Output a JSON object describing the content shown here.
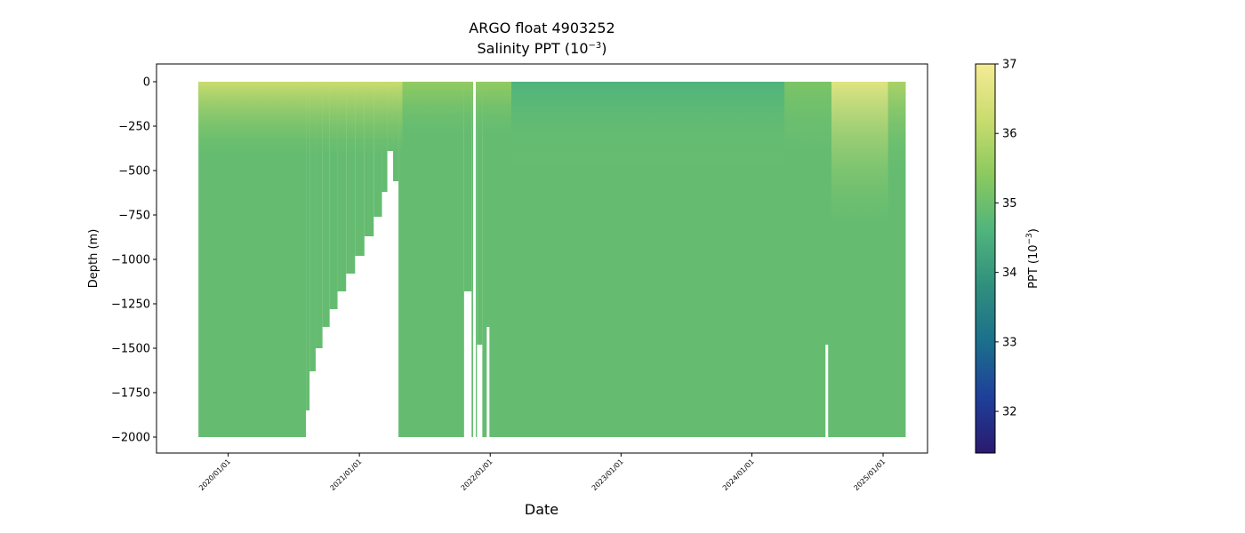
{
  "chart_data": {
    "type": "heatmap",
    "title": "ARGO float 4903252",
    "subtitle_prefix": "Salinity PPT (10",
    "subtitle_sup": "−3",
    "subtitle_suffix": ")",
    "xlabel": "Date",
    "ylabel": "Depth (m)",
    "xlim": [
      "2019-06-15",
      "2025-05-05"
    ],
    "ylim": [
      -2090,
      100
    ],
    "x_ticks": [
      "2020/01/01",
      "2021/01/01",
      "2022/01/01",
      "2023/01/01",
      "2024/01/01",
      "2025/01/01"
    ],
    "y_ticks": [
      0,
      -250,
      -500,
      -750,
      -1000,
      -1250,
      -1500,
      -1750,
      -2000
    ],
    "colorbar": {
      "label_prefix": "PPT (10",
      "label_sup": "−3",
      "label_suffix": ")",
      "range": [
        31.4,
        37
      ],
      "ticks": [
        32,
        33,
        34,
        35,
        36,
        37
      ],
      "colormap": "haline",
      "stops": [
        "#2a1a6e",
        "#1f3f9a",
        "#1b6f8c",
        "#2f8f7d",
        "#4fb47c",
        "#8bc95f",
        "#c9dc6e",
        "#f5eb95"
      ]
    },
    "profile_range": {
      "start": "2019-10-10",
      "end": "2025-03-05",
      "surface": 0
    },
    "bottom_depth_segments": [
      {
        "start": "2019-10-10",
        "end": "2020-08-05",
        "depth": -2000
      },
      {
        "start": "2020-08-05",
        "end": "2020-08-15",
        "depth": -1850
      },
      {
        "start": "2020-08-15",
        "end": "2020-09-01",
        "depth": -1630
      },
      {
        "start": "2020-09-01",
        "end": "2020-09-20",
        "depth": -1500
      },
      {
        "start": "2020-09-20",
        "end": "2020-10-10",
        "depth": -1380
      },
      {
        "start": "2020-10-10",
        "end": "2020-11-01",
        "depth": -1280
      },
      {
        "start": "2020-11-01",
        "end": "2020-11-25",
        "depth": -1180
      },
      {
        "start": "2020-11-25",
        "end": "2020-12-20",
        "depth": -1080
      },
      {
        "start": "2020-12-20",
        "end": "2021-01-15",
        "depth": -980
      },
      {
        "start": "2021-01-15",
        "end": "2021-02-10",
        "depth": -870
      },
      {
        "start": "2021-02-10",
        "end": "2021-03-05",
        "depth": -760
      },
      {
        "start": "2021-03-05",
        "end": "2021-03-20",
        "depth": -620
      },
      {
        "start": "2021-03-20",
        "end": "2021-04-05",
        "depth": -390
      },
      {
        "start": "2021-04-05",
        "end": "2021-04-20",
        "depth": -560
      },
      {
        "start": "2021-04-20",
        "end": "2021-10-20",
        "depth": -2000
      },
      {
        "start": "2021-10-20",
        "end": "2021-11-10",
        "depth": -1180
      },
      {
        "start": "2021-11-10",
        "end": "2021-11-25",
        "depth": -2000
      },
      {
        "start": "2021-11-25",
        "end": "2021-12-10",
        "depth": -1480
      },
      {
        "start": "2021-12-10",
        "end": "2025-03-05",
        "depth": -2000
      }
    ],
    "vertical_gaps": [
      {
        "date": "2021-11-18",
        "top": 0,
        "bottom": -2000
      },
      {
        "date": "2021-12-26",
        "top": -1380,
        "bottom": -2000
      },
      {
        "date": "2024-07-28",
        "top": -1480,
        "bottom": -2000
      }
    ],
    "dominant_deep_value": 34.9,
    "surface_features": [
      {
        "start": "2019-10-10",
        "end": "2021-05-01",
        "upper_value": 36.2,
        "lower_value": 35.3,
        "depth": -400
      },
      {
        "start": "2021-05-01",
        "end": "2022-03-01",
        "upper_value": 35.5,
        "lower_value": 35.0,
        "depth": -300
      },
      {
        "start": "2022-03-01",
        "end": "2024-04-01",
        "upper_value": 34.6,
        "lower_value": 35.0,
        "depth": -500
      },
      {
        "start": "2024-04-01",
        "end": "2024-08-10",
        "upper_value": 35.2,
        "lower_value": 35.0,
        "depth": -400
      },
      {
        "start": "2024-08-10",
        "end": "2025-01-15",
        "upper_value": 36.6,
        "lower_value": 35.3,
        "depth": -800
      },
      {
        "start": "2025-01-15",
        "end": "2025-03-05",
        "upper_value": 35.8,
        "lower_value": 35.0,
        "depth": -500
      }
    ]
  }
}
